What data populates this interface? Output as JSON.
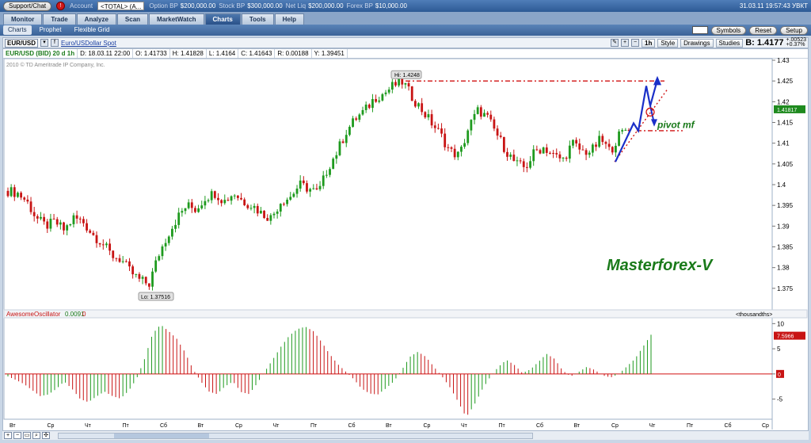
{
  "topbar": {
    "support": "Support/Chat",
    "stop": "!",
    "account_label": "Account",
    "account_value": "<TOTAL> (A...",
    "stats": [
      {
        "label": "Option BP",
        "value": "$200,000.00"
      },
      {
        "label": "Stock BP",
        "value": "$300,000.00"
      },
      {
        "label": "Net Liq",
        "value": "$200,000.00"
      },
      {
        "label": "Forex BP",
        "value": "$10,000.00"
      }
    ],
    "clock": "31.03.11 19:57:43 УВКТ"
  },
  "tabs": [
    "Monitor",
    "Trade",
    "Analyze",
    "Scan",
    "MarketWatch",
    "Charts",
    "Tools",
    "Help"
  ],
  "active_tab": 5,
  "subtabs": [
    "Charts",
    "Prophet",
    "Flexible Grid"
  ],
  "subbar_buttons": [
    "Symbols",
    "Reset",
    "Setup"
  ],
  "chart_toolbar": {
    "symbol": "EUR/USD",
    "description": "Euro/USDollar Spot",
    "timeframe": "1h",
    "style": "Style",
    "drawings": "Drawings",
    "studies": "Studies",
    "bid": "B: 1.4177",
    "change_up": "+.00523",
    "change_pct": "+0.37%"
  },
  "ohlc": [
    "EUR/USD (BID) 20 d 1h",
    "D: 18.03.11 22:00",
    "O: 1.41733",
    "H: 1.41828",
    "L: 1.4164",
    "C: 1.41643",
    "R: 0.00188",
    "Y: 1.39451"
  ],
  "copyright": "2010 © TD Ameritrade IP Company, Inc.",
  "watermark": "Masterforex-V",
  "annotation": "pivot mf",
  "hi_label": "Hi: 1.4248",
  "lo_label": "Lo: 1.37516",
  "price_tag": "1.41817",
  "osc": {
    "name": "AwesomeOscillator",
    "v1": "0.0091",
    "v2": "0",
    "units": "<thousandths>",
    "tag": "7.5966",
    "zero_tag": "0"
  },
  "colors": {
    "up": "#1e9a1e",
    "down": "#c81414",
    "annot": "#d01010",
    "arrow": "#1a2fc8",
    "text_green": "#1a7a1a"
  },
  "chart_data": {
    "type": "candlestick",
    "ylim": [
      1.37,
      1.43
    ],
    "yticks": [
      "1.43",
      "1.425",
      "1.42",
      "1.415",
      "1.41",
      "1.405",
      "1.4",
      "1.395",
      "1.39",
      "1.385",
      "1.38",
      "1.375"
    ],
    "xticks": [
      "Вт",
      "Ср",
      "Чт",
      "Пт",
      "Сб",
      "Вт",
      "Ср",
      "Чт",
      "Пт",
      "Сб",
      "Вт",
      "Ср",
      "Чт",
      "Пт",
      "Сб",
      "Вт",
      "Ср",
      "Чт",
      "Пт",
      "Сб",
      "Ср"
    ],
    "price_path": [
      1.3985,
      1.398,
      1.396,
      1.392,
      1.39,
      1.391,
      1.389,
      1.392,
      1.391,
      1.388,
      1.386,
      1.383,
      1.382,
      1.379,
      1.377,
      1.376,
      1.383,
      1.388,
      1.392,
      1.395,
      1.394,
      1.397,
      1.398,
      1.396,
      1.398,
      1.396,
      1.395,
      1.393,
      1.392,
      1.396,
      1.397,
      1.4,
      1.399,
      1.398,
      1.404,
      1.408,
      1.413,
      1.416,
      1.418,
      1.421,
      1.422,
      1.424,
      1.4248,
      1.421,
      1.418,
      1.415,
      1.412,
      1.408,
      1.407,
      1.414,
      1.418,
      1.416,
      1.412,
      1.408,
      1.405,
      1.404,
      1.408,
      1.409,
      1.407,
      1.406,
      1.41,
      1.408,
      1.408,
      1.411,
      1.408,
      1.412,
      1.414
    ],
    "osc_values": [
      -0.5,
      -1.2,
      -2,
      -3.2,
      -4.4,
      -4.1,
      -3,
      -1.5,
      -3,
      -5,
      -5.6,
      -4.5,
      -3.5,
      -4.4,
      -4.9,
      -3.4,
      -1,
      3,
      8,
      9.8,
      8.5,
      7,
      4.4,
      1,
      -1.5,
      -3.5,
      -4,
      -2.5,
      -1.5,
      -3.6,
      -4,
      -1.9,
      0.6,
      3,
      5.5,
      7.6,
      8.9,
      9.4,
      8.5,
      6.4,
      4,
      2,
      0.5,
      -1,
      -2.9,
      -3.9,
      -4.1,
      -2.9,
      -1.5,
      0.8,
      3.4,
      4.4,
      3.4,
      1.4,
      -0.5,
      -2.7,
      -5.5,
      -8.6,
      -6.2,
      -3.1,
      -0.6,
      1.4,
      2.8,
      1.8,
      0.2,
      0.9,
      2.4,
      4,
      3,
      0.7,
      -0.5,
      0.4,
      1.4,
      0.8,
      -0.3,
      -0.7,
      0,
      1.5,
      3,
      5.4,
      7.8
    ],
    "osc_ylim": [
      -9,
      11
    ],
    "osc_yticks": [
      "10",
      "5",
      "0",
      "-5"
    ],
    "pivot_level": 1.413,
    "high_level": 1.425
  }
}
